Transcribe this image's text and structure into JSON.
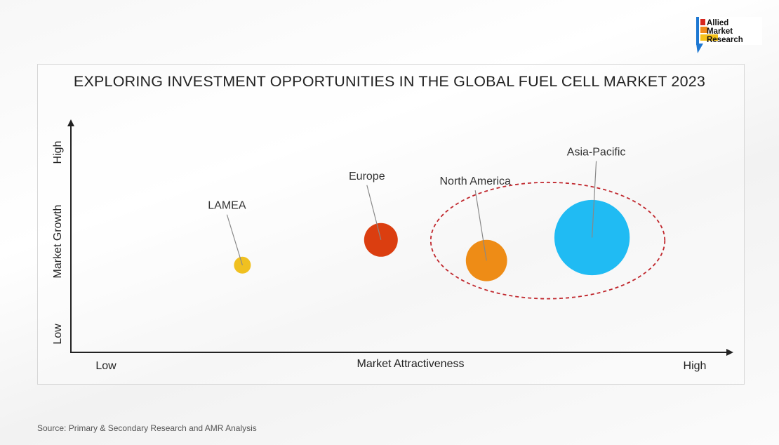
{
  "brand": {
    "line1": "Allied",
    "line2": "Market",
    "line3": "Research"
  },
  "title": "EXPLORING INVESTMENT OPPORTUNITIES IN THE GLOBAL FUEL CELL MARKET 2023",
  "source": "Source: Primary & Secondary Research and AMR Analysis",
  "chart_data": {
    "type": "bubble",
    "title": "EXPLORING INVESTMENT OPPORTUNITIES IN THE GLOBAL FUEL CELL MARKET 2023",
    "xlabel": "Market Attractiveness",
    "ylabel": "Market Growth",
    "x_ticks": {
      "low": "Low",
      "high": "High"
    },
    "y_ticks": {
      "low": "Low",
      "high": "High"
    },
    "xlim": [
      0,
      100
    ],
    "ylim": [
      0,
      100
    ],
    "grid": false,
    "points": [
      {
        "name": "LAMEA",
        "x": 26,
        "y": 38,
        "size": 1.0,
        "color": "#f0c020"
      },
      {
        "name": "Europe",
        "x": 47,
        "y": 49,
        "size": 4.0,
        "color": "#db3e10"
      },
      {
        "name": "North America",
        "x": 63,
        "y": 40,
        "size": 6.0,
        "color": "#ee8c16"
      },
      {
        "name": "Asia-Pacific",
        "x": 79,
        "y": 50,
        "size": 20.0,
        "color": "#20bbf3"
      }
    ],
    "highlight": {
      "members": [
        "North America",
        "Asia-Pacific"
      ],
      "color": "#c0272d"
    }
  }
}
